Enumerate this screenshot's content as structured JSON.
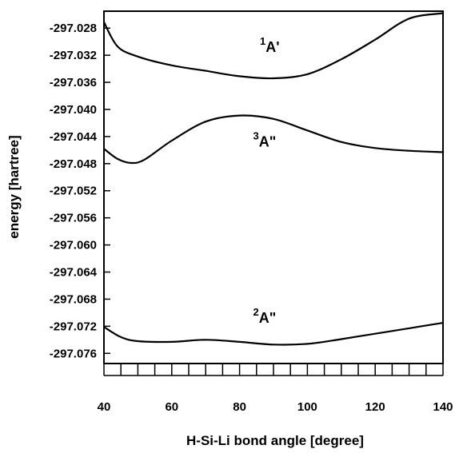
{
  "chart_data": {
    "type": "line",
    "title": "",
    "xlabel": "H-Si-Li bond angle [degree]",
    "ylabel": "energy [hartree]",
    "xlim": [
      40,
      140
    ],
    "ylim": [
      -297.0775,
      -297.0255
    ],
    "x_ticks": [
      40,
      60,
      80,
      100,
      120,
      140
    ],
    "y_ticks": [
      "-297.028",
      "-297.032",
      "-297.036",
      "-297.040",
      "-297.044",
      "-297.048",
      "-297.052",
      "-297.056",
      "-297.060",
      "-297.064",
      "-297.068",
      "-297.072",
      "-297.076"
    ],
    "grid": false,
    "series": [
      {
        "name": "1A'",
        "label": {
          "sup": "1",
          "main": "A'"
        },
        "x": [
          40,
          44,
          50,
          60,
          70,
          80,
          90,
          100,
          110,
          120,
          130,
          140
        ],
        "y": [
          -297.0271,
          -297.0307,
          -297.0322,
          -297.0335,
          -297.0343,
          -297.0351,
          -297.0354,
          -297.0348,
          -297.0326,
          -297.0297,
          -297.0266,
          -297.0258
        ]
      },
      {
        "name": "3A\"",
        "label": {
          "sup": "3",
          "main": "A\""
        },
        "x": [
          40,
          44,
          48,
          52,
          60,
          70,
          80,
          90,
          100,
          110,
          120,
          130,
          140
        ],
        "y": [
          -297.0458,
          -297.0473,
          -297.0479,
          -297.0474,
          -297.0446,
          -297.0418,
          -297.0409,
          -297.0414,
          -297.0431,
          -297.0448,
          -297.0457,
          -297.0461,
          -297.0463
        ]
      },
      {
        "name": "2A\"",
        "label": {
          "sup": "2",
          "main": "A\""
        },
        "x": [
          40,
          45,
          50,
          60,
          70,
          80,
          90,
          100,
          110,
          120,
          130,
          140
        ],
        "y": [
          -297.0721,
          -297.0736,
          -297.0742,
          -297.0743,
          -297.074,
          -297.0743,
          -297.0747,
          -297.0746,
          -297.0739,
          -297.0731,
          -297.0723,
          -297.0715
        ]
      }
    ]
  }
}
